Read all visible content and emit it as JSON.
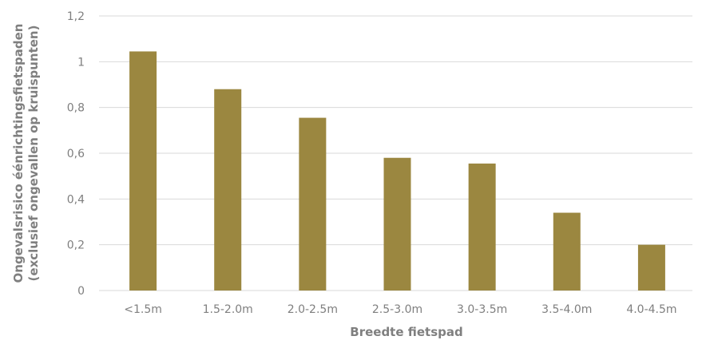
{
  "chart_data": {
    "type": "bar",
    "categories": [
      "<1.5m",
      "1.5-2.0m",
      "2.0-2.5m",
      "2.5-3.0m",
      "3.0-3.5m",
      "3.5-4.0m",
      "4.0-4.5m"
    ],
    "values": [
      1.045,
      0.88,
      0.755,
      0.58,
      0.555,
      0.34,
      0.2
    ],
    "xlabel": "Breedte fietspad",
    "ylabel_line1": "Ongevalsrisico éénrichtingsfietspaden",
    "ylabel_line2": "(exclusief ongevallen op kruispunten)",
    "ylim": [
      0,
      1.2
    ],
    "yticks": [
      "0",
      "0,2",
      "0,4",
      "0,6",
      "0,8",
      "1",
      "1,2"
    ],
    "grid": true,
    "legend": "none",
    "colors": {
      "bar": "#9b8740",
      "grid": "#d9d9d9",
      "text": "#7f7f7f"
    }
  }
}
